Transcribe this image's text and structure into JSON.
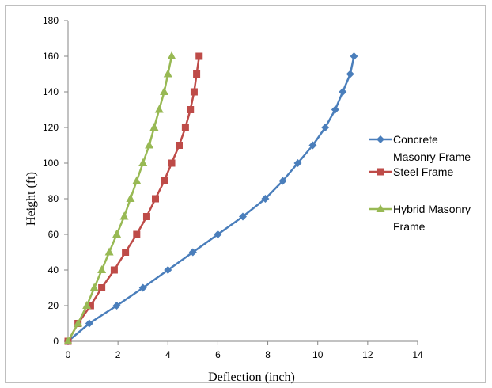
{
  "chart_data": {
    "type": "line",
    "xlabel": "Deflection (inch)",
    "ylabel": "Height (ft)",
    "xlim": [
      0,
      14
    ],
    "ylim": [
      0,
      180
    ],
    "xticks": [
      "0",
      "2",
      "4",
      "6",
      "8",
      "10",
      "12",
      "14"
    ],
    "yticks": [
      "0",
      "20",
      "40",
      "60",
      "80",
      "100",
      "120",
      "140",
      "160",
      "180"
    ],
    "grid": false,
    "legend_position": "right",
    "series": [
      {
        "name_lines": [
          "Concrete",
          "Masonry Frame"
        ],
        "color": "#4a7ebb",
        "marker": "diamond",
        "x": [
          0,
          0.85,
          1.95,
          3.0,
          4.0,
          5.0,
          6.0,
          7.0,
          7.9,
          8.6,
          9.2,
          9.8,
          10.3,
          10.7,
          11.0,
          11.3,
          11.45
        ],
        "y": [
          0,
          10,
          20,
          30,
          40,
          50,
          60,
          70,
          80,
          90,
          100,
          110,
          120,
          130,
          140,
          150,
          160
        ]
      },
      {
        "name_lines": [
          "Steel Frame"
        ],
        "color": "#be4b48",
        "marker": "square",
        "x": [
          0,
          0.4,
          0.9,
          1.35,
          1.85,
          2.3,
          2.75,
          3.15,
          3.5,
          3.85,
          4.15,
          4.45,
          4.7,
          4.9,
          5.05,
          5.15,
          5.25
        ],
        "y": [
          0,
          10,
          20,
          30,
          40,
          50,
          60,
          70,
          80,
          90,
          100,
          110,
          120,
          130,
          140,
          150,
          160
        ]
      },
      {
        "name_lines": [
          "Hybrid Masonry",
          "Frame"
        ],
        "color": "#98b954",
        "marker": "triangle",
        "x": [
          0,
          0.4,
          0.75,
          1.05,
          1.35,
          1.65,
          1.95,
          2.25,
          2.5,
          2.75,
          3.0,
          3.25,
          3.45,
          3.65,
          3.85,
          4.0,
          4.15
        ],
        "y": [
          0,
          10,
          20,
          30,
          40,
          50,
          60,
          70,
          80,
          90,
          100,
          110,
          120,
          130,
          140,
          150,
          160
        ]
      }
    ]
  }
}
